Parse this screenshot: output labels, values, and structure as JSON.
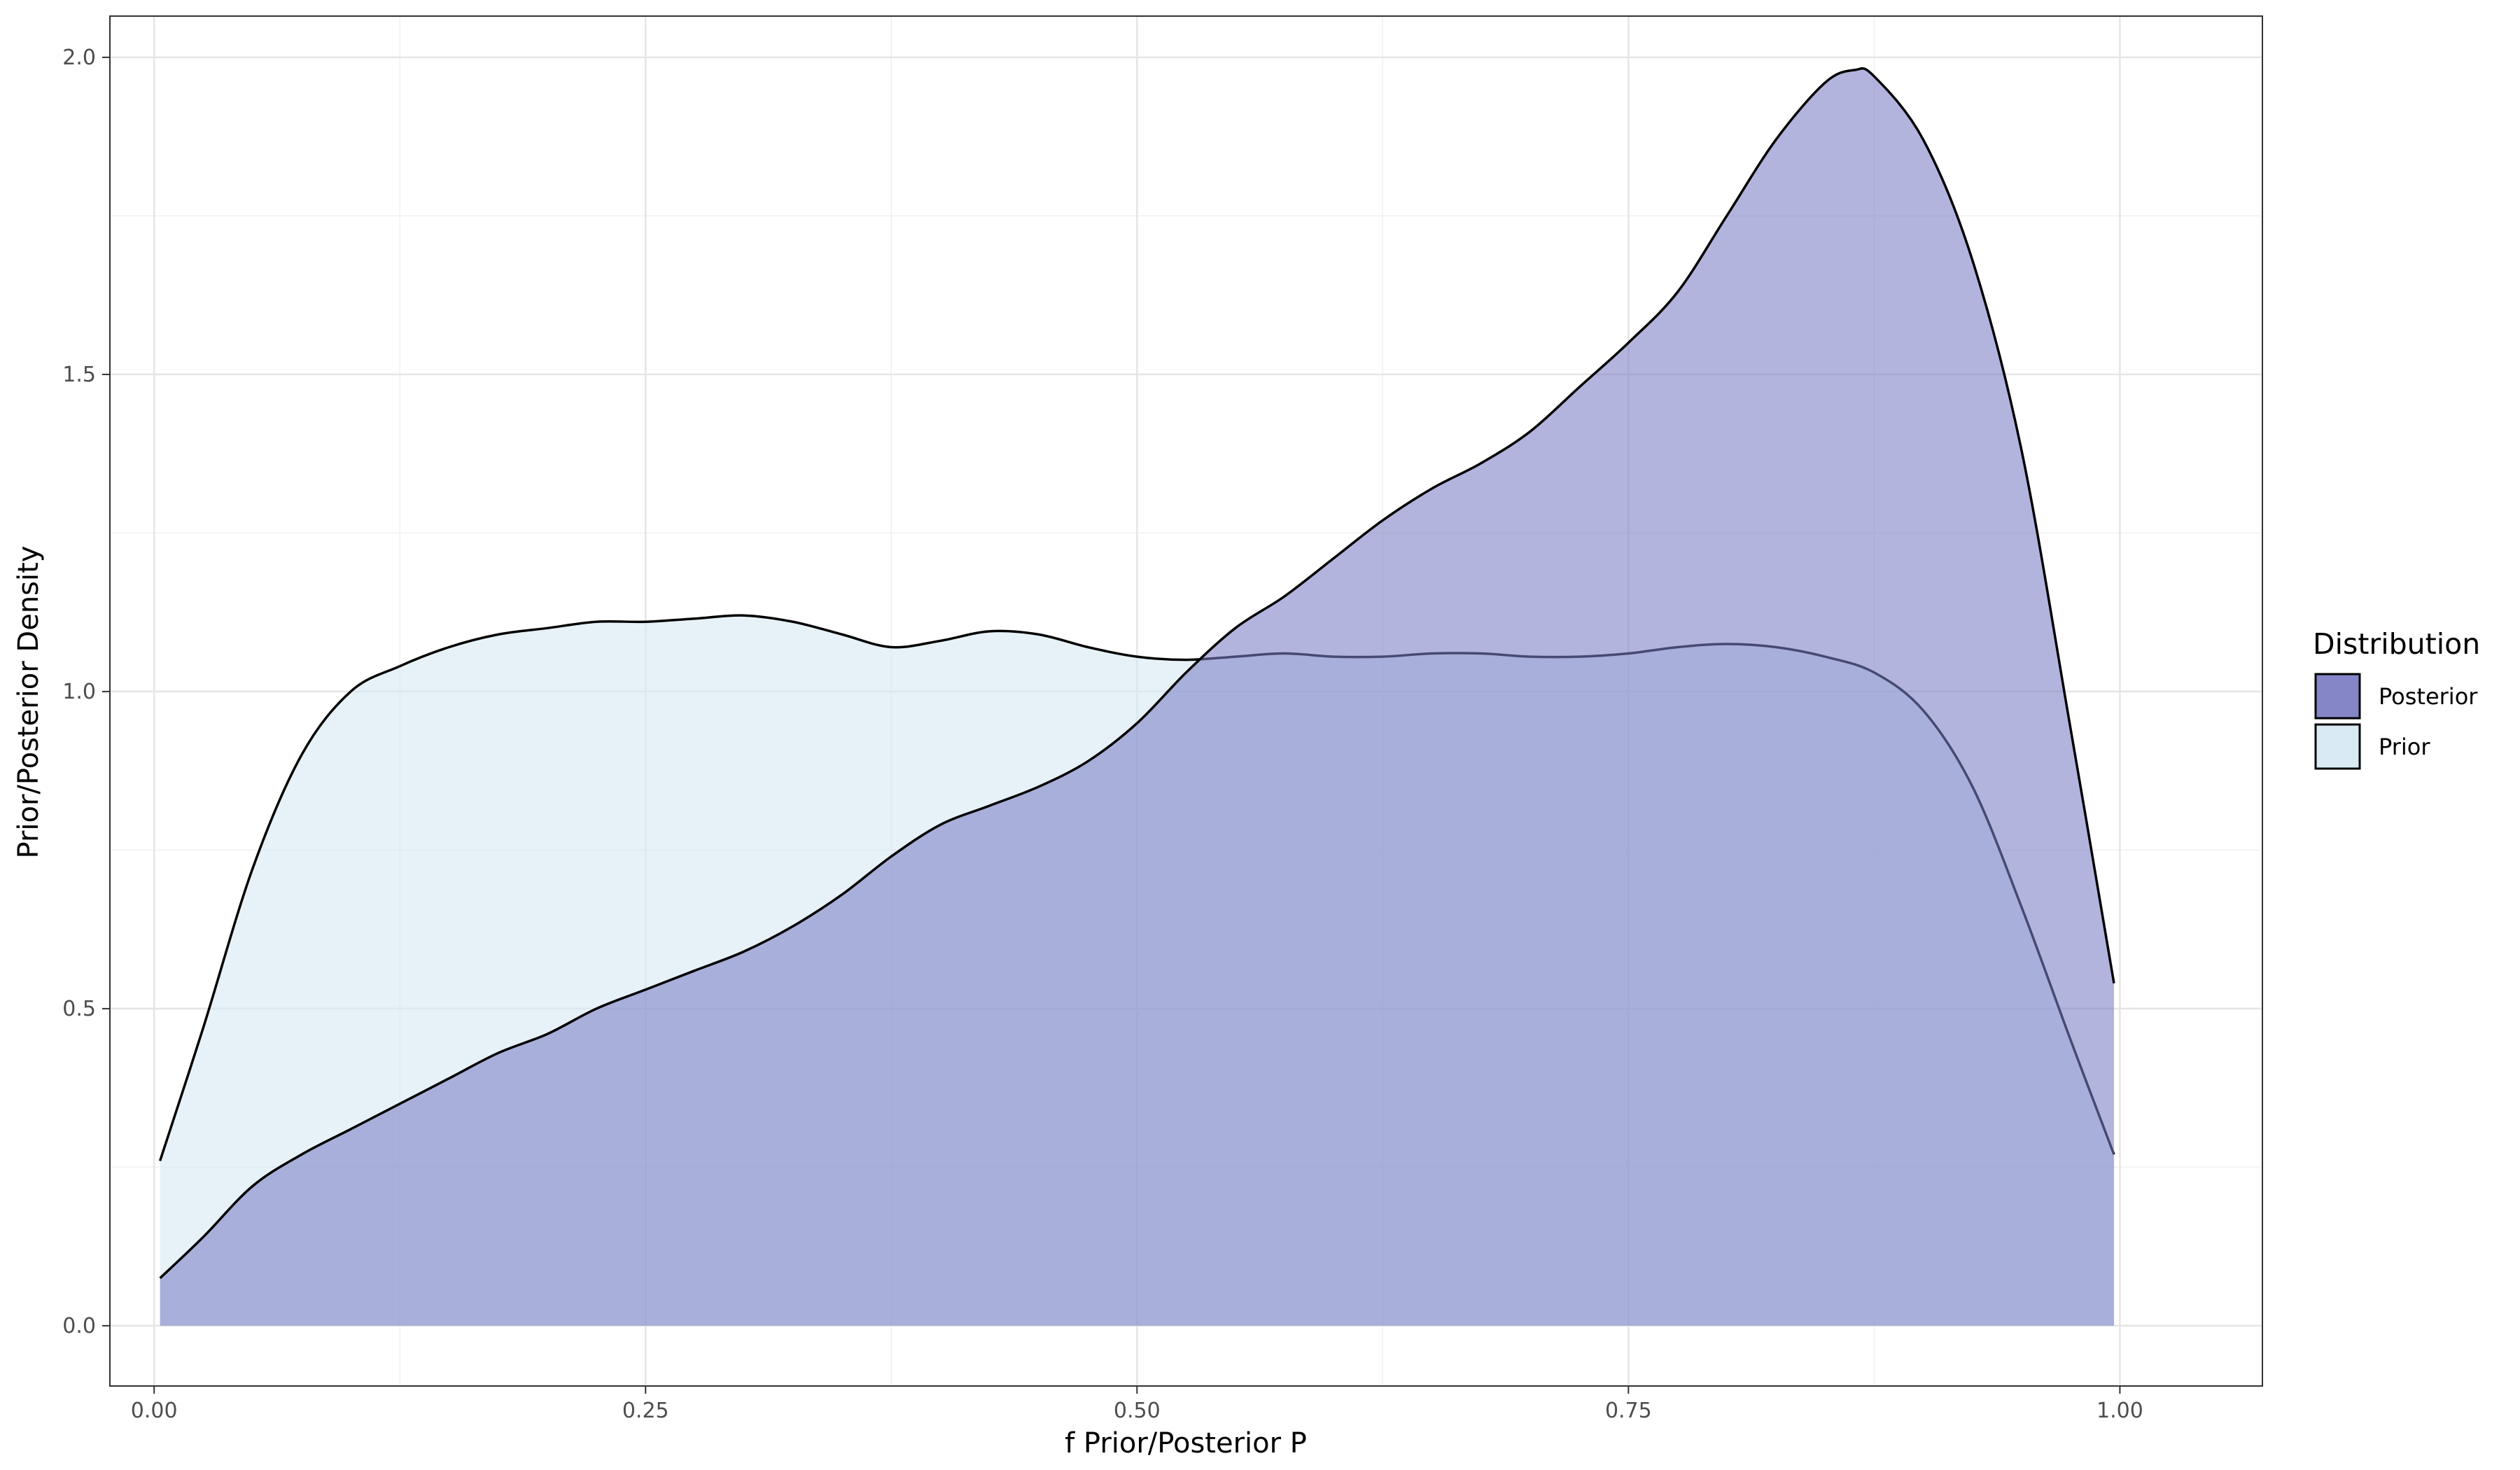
{
  "chart_data": {
    "type": "area",
    "xlabel": "f Prior/Posterior P",
    "ylabel": "Prior/Posterior Density",
    "xlim": [
      -0.0225,
      1.0725
    ],
    "ylim": [
      -0.095,
      2.065
    ],
    "x_ticks": [
      0,
      0.25,
      0.5,
      0.75,
      1
    ],
    "x_tick_labels": [
      "0.00",
      "0.25",
      "0.50",
      "0.75",
      "1.00"
    ],
    "y_ticks": [
      0,
      0.5,
      1,
      1.5,
      2
    ],
    "y_tick_labels": [
      "0.0",
      "0.5",
      "1.0",
      "1.5",
      "2.0"
    ],
    "grid": true,
    "legend": {
      "title": "Distribution",
      "position": "right"
    },
    "series": [
      {
        "name": "Prior",
        "fill": "#d7e9f3",
        "fill_opacity": 0.6,
        "x": [
          0.003,
          0.025,
          0.05,
          0.075,
          0.1,
          0.125,
          0.15,
          0.175,
          0.2,
          0.225,
          0.25,
          0.275,
          0.3,
          0.325,
          0.35,
          0.375,
          0.4,
          0.425,
          0.45,
          0.475,
          0.5,
          0.525,
          0.55,
          0.575,
          0.6,
          0.625,
          0.65,
          0.675,
          0.7,
          0.725,
          0.75,
          0.775,
          0.8,
          0.825,
          0.85,
          0.875,
          0.9,
          0.925,
          0.95,
          0.975,
          0.997
        ],
        "y": [
          0.26,
          0.47,
          0.72,
          0.9,
          1.0,
          1.04,
          1.07,
          1.09,
          1.1,
          1.11,
          1.11,
          1.115,
          1.12,
          1.11,
          1.09,
          1.07,
          1.08,
          1.095,
          1.09,
          1.07,
          1.055,
          1.05,
          1.055,
          1.06,
          1.055,
          1.055,
          1.06,
          1.06,
          1.055,
          1.055,
          1.06,
          1.07,
          1.075,
          1.07,
          1.055,
          1.03,
          0.97,
          0.85,
          0.66,
          0.45,
          0.27
        ]
      },
      {
        "name": "Posterior",
        "fill": "#7b7dc4",
        "fill_opacity": 0.58,
        "x": [
          0.003,
          0.025,
          0.05,
          0.075,
          0.1,
          0.125,
          0.15,
          0.175,
          0.2,
          0.225,
          0.25,
          0.275,
          0.3,
          0.325,
          0.35,
          0.375,
          0.4,
          0.425,
          0.45,
          0.475,
          0.5,
          0.525,
          0.55,
          0.575,
          0.6,
          0.625,
          0.65,
          0.675,
          0.7,
          0.725,
          0.75,
          0.775,
          0.8,
          0.825,
          0.85,
          0.865,
          0.875,
          0.9,
          0.925,
          0.95,
          0.975,
          0.997
        ],
        "y": [
          0.075,
          0.14,
          0.22,
          0.27,
          0.31,
          0.35,
          0.39,
          0.43,
          0.46,
          0.5,
          0.53,
          0.56,
          0.59,
          0.63,
          0.68,
          0.74,
          0.79,
          0.82,
          0.85,
          0.89,
          0.95,
          1.03,
          1.1,
          1.15,
          1.21,
          1.27,
          1.32,
          1.36,
          1.41,
          1.48,
          1.55,
          1.63,
          1.75,
          1.87,
          1.96,
          1.98,
          1.97,
          1.87,
          1.68,
          1.38,
          0.94,
          0.54
        ]
      }
    ]
  }
}
